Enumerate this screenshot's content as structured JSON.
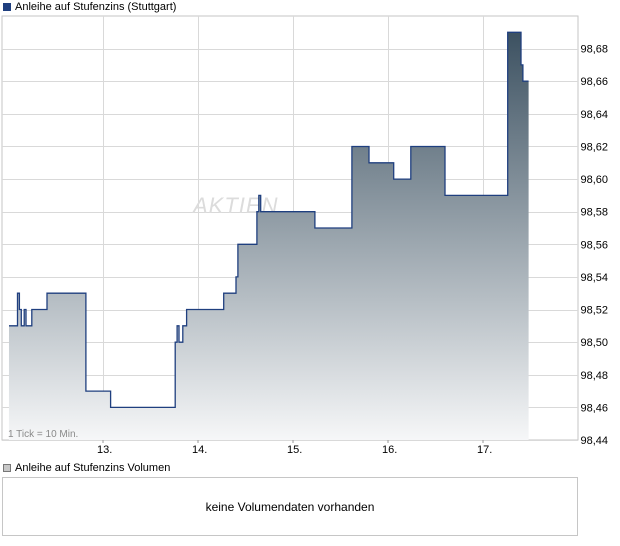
{
  "price_legend": {
    "label": "Anleihe auf Stufenzins (Stuttgart)",
    "color": "#1f3f7f"
  },
  "volume_legend": {
    "label": "Anleihe auf Stufenzins Volumen"
  },
  "tick_note": "1 Tick = 10 Min.",
  "watermark": "AKTIEN",
  "volume_message": "keine Volumendaten vorhanden",
  "chart_data": {
    "type": "area",
    "title": "",
    "xlabel": "",
    "ylabel": "",
    "x_categories": [
      "13.",
      "14.",
      "15.",
      "16.",
      "17."
    ],
    "ylim": [
      98.44,
      98.7
    ],
    "y_ticks": [
      98.44,
      98.46,
      98.48,
      98.5,
      98.52,
      98.54,
      98.56,
      98.58,
      98.6,
      98.62,
      98.64,
      98.66,
      98.68
    ],
    "y_axis_position": "right",
    "grid": true,
    "legend_position": "top-left",
    "colors": {
      "line": "#1f3f7f",
      "fill_top": "#3c5161",
      "fill_bottom": "#f6f7f8",
      "grid": "#d9d9d9"
    },
    "series": [
      {
        "name": "Anleihe auf Stufenzins (Stuttgart)",
        "x": [
          0.0,
          0.1,
          0.11,
          0.13,
          0.14,
          0.16,
          0.18,
          0.2,
          0.22,
          0.25,
          0.27,
          0.3,
          0.34,
          0.37,
          0.43,
          0.49,
          0.53,
          0.56,
          0.6,
          0.62,
          0.63,
          0.64,
          0.65,
          0.66,
          0.68,
          0.74,
          0.76,
          0.78,
          0.8,
          0.82,
          0.84,
          0.85,
          0.86,
          0.88,
          0.92,
          0.94,
          0.96,
          0.98,
          0.99,
          1.0,
          1.02,
          1.06,
          1.07,
          1.12,
          1.14,
          1.16,
          1.18,
          1.2,
          1.22,
          1.24,
          1.25,
          1.26,
          1.28,
          1.3,
          1.32,
          1.34,
          1.38,
          1.4,
          1.42,
          1.44,
          1.46,
          1.48,
          1.5,
          1.52,
          1.54,
          1.56,
          1.58,
          1.6,
          1.62,
          1.64,
          1.66,
          1.68,
          1.7,
          1.72,
          1.74,
          1.76,
          1.78,
          1.8,
          1.82,
          1.84,
          1.86,
          1.88,
          1.9,
          1.92,
          1.94,
          1.96,
          1.98,
          2.0,
          2.02,
          2.04,
          2.06,
          2.08,
          2.1,
          2.12,
          2.14,
          2.16,
          2.18,
          2.2,
          2.22,
          2.24,
          2.26,
          2.28,
          2.3,
          2.32,
          2.34,
          2.36,
          2.38,
          2.4,
          2.42,
          2.44,
          2.46,
          2.48,
          2.5,
          2.52,
          2.54,
          2.56,
          2.58,
          2.6,
          2.62,
          2.64,
          2.66,
          2.68,
          2.7,
          2.72,
          2.74,
          2.76,
          2.78,
          2.8,
          2.82,
          2.84,
          2.86,
          2.88,
          2.9,
          2.92,
          2.94,
          2.96,
          2.98,
          3.0,
          3.02,
          3.04,
          3.06,
          3.08,
          3.1,
          3.12,
          3.14,
          3.16,
          3.18,
          3.2,
          3.22,
          3.24,
          3.26,
          3.28,
          3.3,
          3.32,
          3.34,
          3.36,
          3.38,
          3.4,
          3.42,
          3.44,
          3.46,
          3.48,
          3.5,
          3.52,
          3.54,
          3.56,
          3.58,
          3.6,
          3.62,
          3.64,
          3.66,
          3.68,
          3.7,
          3.72,
          3.74,
          3.76,
          3.78,
          3.8,
          3.82,
          3.84,
          3.86,
          3.88,
          3.9,
          3.92,
          3.94,
          3.96,
          3.98,
          4.0,
          4.02,
          4.04,
          4.06,
          4.08,
          4.1,
          4.12,
          4.14,
          4.16,
          4.18,
          4.2,
          4.22,
          4.24,
          4.26,
          4.28,
          4.3,
          4.32,
          4.34,
          4.36,
          4.38,
          4.4,
          4.42,
          4.44,
          4.46,
          4.48,
          4.5,
          4.52,
          4.54,
          4.56,
          4.58,
          4.6,
          4.62,
          4.64,
          4.66,
          4.68,
          4.7,
          4.72,
          4.74,
          4.76,
          4.78,
          4.8,
          4.82,
          4.84,
          4.86,
          4.88,
          4.9,
          4.92,
          4.94,
          4.96,
          4.98,
          5.0
        ],
        "steps": [
          [
            -0.99,
            98.51
          ],
          [
            -0.9,
            98.53
          ],
          [
            -0.88,
            98.52
          ],
          [
            -0.86,
            98.51
          ],
          [
            -0.83,
            98.52
          ],
          [
            -0.81,
            98.51
          ],
          [
            -0.75,
            98.52
          ],
          [
            -0.59,
            98.53
          ],
          [
            -0.2,
            98.53
          ],
          [
            -0.18,
            98.47
          ],
          [
            0.08,
            98.46
          ],
          [
            0.74,
            98.46
          ],
          [
            0.76,
            98.5
          ],
          [
            0.78,
            98.51
          ],
          [
            0.8,
            98.5
          ],
          [
            0.84,
            98.51
          ],
          [
            0.88,
            98.52
          ],
          [
            1.25,
            98.52
          ],
          [
            1.27,
            98.53
          ],
          [
            1.39,
            98.53
          ],
          [
            1.4,
            98.54
          ],
          [
            1.42,
            98.56
          ],
          [
            1.6,
            98.56
          ],
          [
            1.62,
            98.58
          ],
          [
            1.64,
            98.59
          ],
          [
            1.66,
            98.58
          ],
          [
            2.21,
            98.58
          ],
          [
            2.23,
            98.57
          ],
          [
            2.6,
            98.57
          ],
          [
            2.62,
            98.62
          ],
          [
            2.78,
            98.62
          ],
          [
            2.8,
            98.61
          ],
          [
            3.04,
            98.61
          ],
          [
            3.06,
            98.6
          ],
          [
            3.22,
            98.6
          ],
          [
            3.24,
            98.62
          ],
          [
            3.58,
            98.62
          ],
          [
            3.6,
            98.59
          ],
          [
            4.2,
            98.59
          ],
          [
            4.26,
            98.69
          ],
          [
            4.38,
            98.69
          ],
          [
            4.4,
            98.67
          ],
          [
            4.42,
            98.66
          ],
          [
            4.48,
            98.66
          ]
        ]
      }
    ]
  }
}
